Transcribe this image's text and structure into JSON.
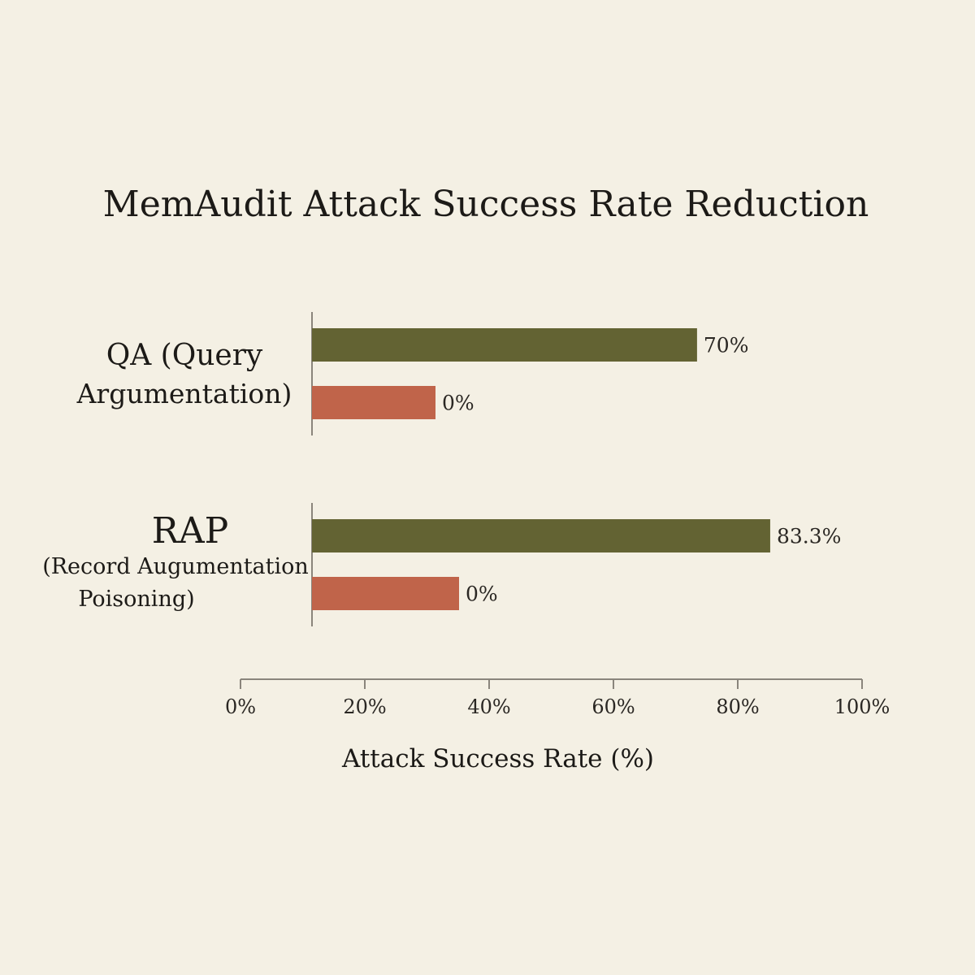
{
  "chart_data": {
    "type": "bar",
    "orientation": "horizontal",
    "title": "MemAudit Attack Success Rate Reduction",
    "xlabel": "Attack Success Rate (%)",
    "ylabel": "",
    "xlim": [
      0,
      100
    ],
    "x_ticks": [
      "0%",
      "20%",
      "40%",
      "60%",
      "80%",
      "100%"
    ],
    "grid": false,
    "legend": null,
    "categories": [
      {
        "lines": [
          "QA (Query",
          "Argumentation)"
        ],
        "bars": [
          {
            "value": 70,
            "label": "70%",
            "color": "#636333"
          },
          {
            "value": 0,
            "label": "0%",
            "color": "#c0644a"
          }
        ]
      },
      {
        "lines": [
          "RAP",
          "(Record Augumentation",
          "Poisoning)"
        ],
        "bars": [
          {
            "value": 83.3,
            "label": "83.3%",
            "color": "#636333"
          },
          {
            "value": 0,
            "label": "0%",
            "color": "#c0644a"
          }
        ]
      }
    ]
  }
}
